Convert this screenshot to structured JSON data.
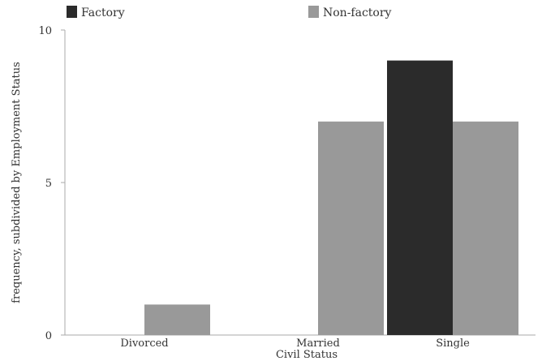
{
  "chart_data": {
    "type": "bar",
    "title": "",
    "xlabel": "Civil Status",
    "ylabel": "frequency, subdivided by Employment Status",
    "categories": [
      "Divorced",
      "Married",
      "Single"
    ],
    "series": [
      {
        "name": "Factory",
        "values": [
          0,
          0,
          9
        ],
        "color": "#2b2b2b"
      },
      {
        "name": "Non-factory",
        "values": [
          1,
          7,
          7
        ],
        "color": "#999999"
      }
    ],
    "ylim": [
      0,
      10
    ],
    "yticks": [
      0,
      5,
      10
    ],
    "grid": false,
    "legend_position": "top"
  }
}
